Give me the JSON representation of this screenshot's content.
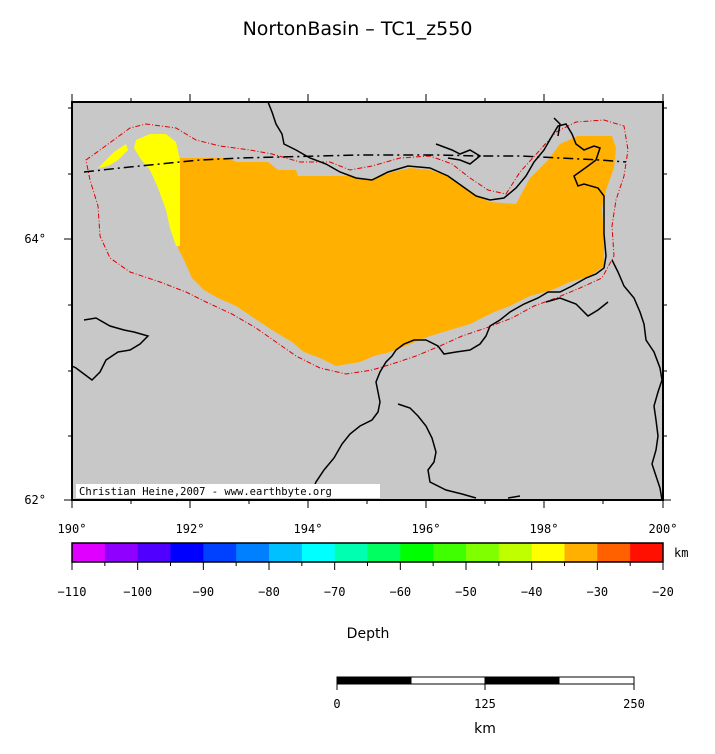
{
  "title": "NortonBasin – TC1_z550",
  "credit": "Christian Heine,2007 - www.earthbyte.org",
  "map": {
    "lon_ticks": [
      "190°",
      "192°",
      "194°",
      "196°",
      "198°",
      "200°"
    ],
    "lat_ticks": [
      "62°",
      "64°"
    ],
    "colors": {
      "land_background": "#c8c8c8",
      "basin_fill": "#ffb000",
      "basin_edge_fill": "#ffff00",
      "outline": "#e00000"
    }
  },
  "colorbar": {
    "label": "Depth",
    "unit": "km",
    "ticks": [
      "−110",
      "−100",
      "−90",
      "−80",
      "−70",
      "−60",
      "−50",
      "−40",
      "−30",
      "−20"
    ],
    "colors": [
      "#e000ff",
      "#9000ff",
      "#5000ff",
      "#0000ff",
      "#0040ff",
      "#0080ff",
      "#00c0ff",
      "#00ffff",
      "#00ffb0",
      "#00ff60",
      "#00ff00",
      "#40ff00",
      "#80ff00",
      "#c0ff00",
      "#ffff00",
      "#ffb000",
      "#ff6000",
      "#ff1000"
    ]
  },
  "scalebar": {
    "ticks": [
      "0",
      "125",
      "250"
    ],
    "unit": "km"
  }
}
